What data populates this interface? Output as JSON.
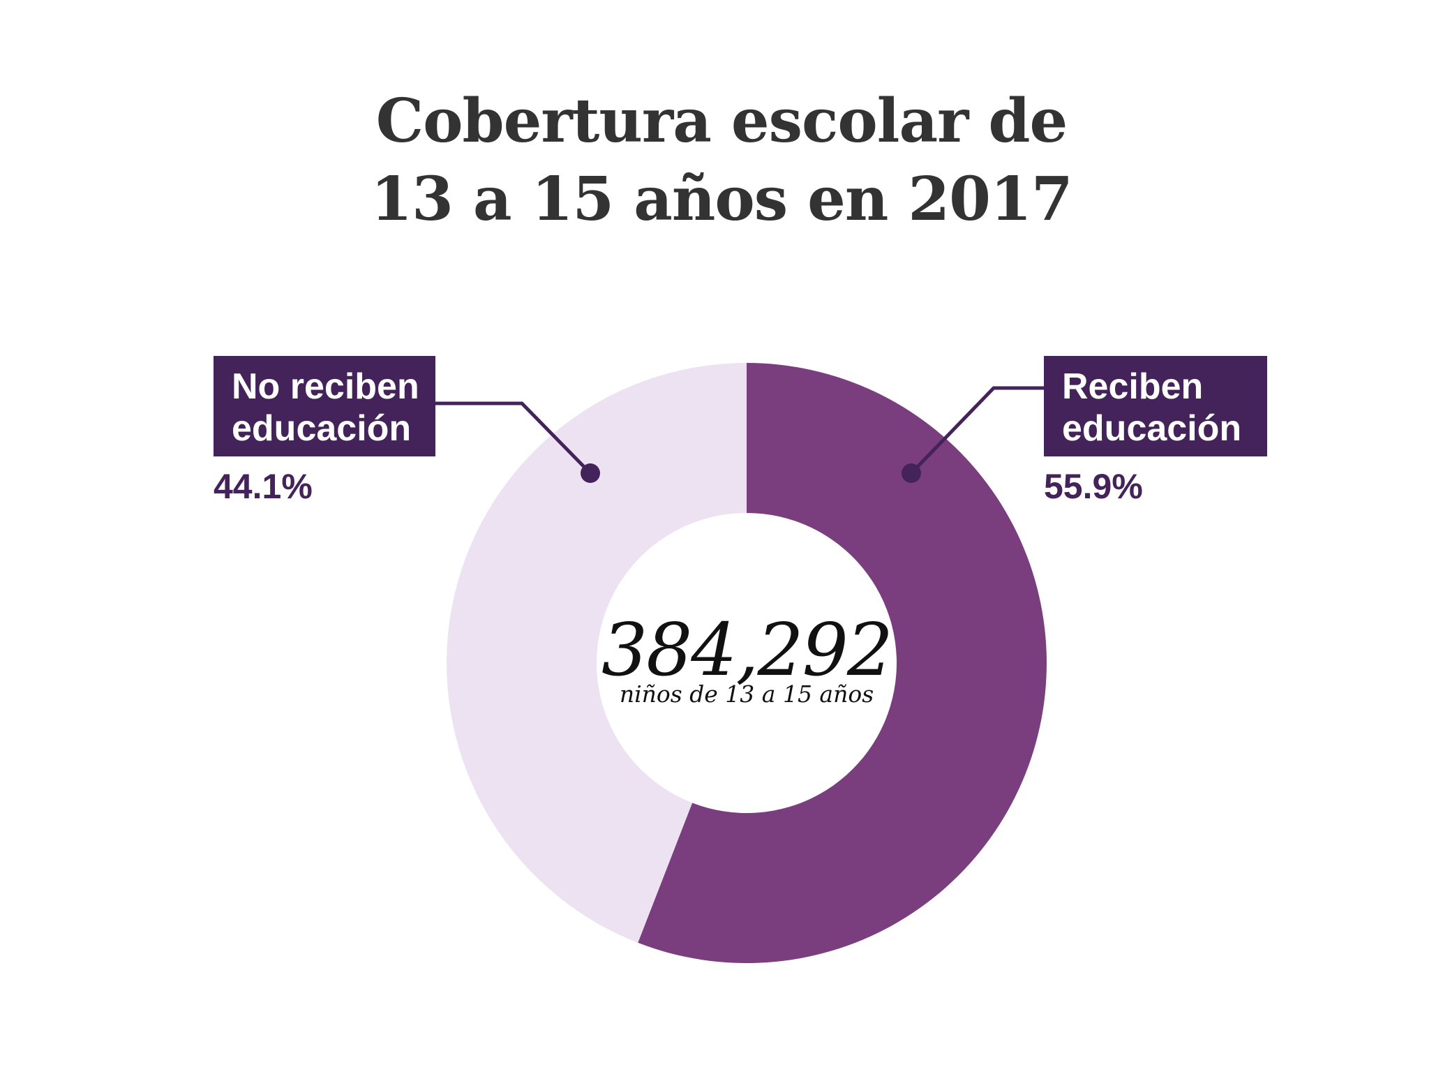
{
  "title": {
    "line1": "Cobertura escolar de",
    "line2": "13 a 15 años en 2017"
  },
  "center": {
    "total": "384,292",
    "subtitle": "niños de 13 a 15 años"
  },
  "labels": {
    "no_reciben": {
      "line1": "No reciben",
      "line2": "educación",
      "pct": "44.1%"
    },
    "reciben": {
      "line1": "Reciben",
      "line2": "educación",
      "pct": "55.9%"
    }
  },
  "colors": {
    "reciben": "#7a3d7e",
    "no_reciben": "#ede2f1",
    "label_bg": "#43235a",
    "title": "#333333"
  },
  "chart_data": {
    "type": "pie",
    "style": "donut",
    "title": "Cobertura escolar de 13 a 15 años en 2017",
    "total": 384292,
    "slices": [
      {
        "name": "Reciben educación",
        "value": 55.9,
        "color": "#7a3d7e"
      },
      {
        "name": "No reciben educación",
        "value": 44.1,
        "color": "#ede2f1"
      }
    ]
  }
}
